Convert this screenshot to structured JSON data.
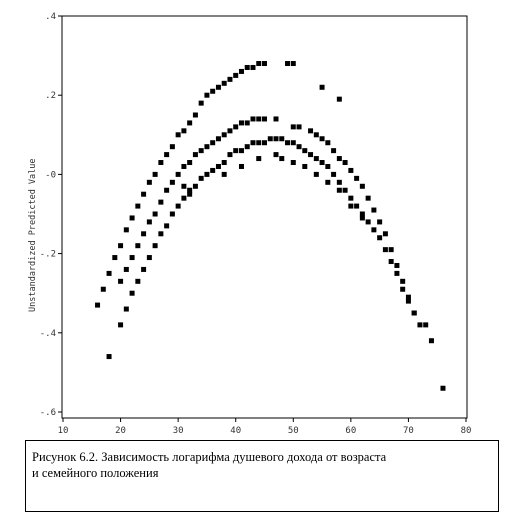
{
  "chart_data": {
    "type": "scatter",
    "title": "",
    "xlabel": "",
    "ylabel": "Unstandardized Predicted Value",
    "xlim": [
      10,
      80
    ],
    "ylim": [
      -0.6,
      0.4
    ],
    "x_ticks": [
      "10",
      "20",
      "30",
      "40",
      "50",
      "60",
      "70",
      "80"
    ],
    "y_ticks": [
      ".4",
      ".2",
      "-0",
      "-.2",
      "-.4",
      "-.6"
    ],
    "y_tick_values": [
      0.4,
      0.2,
      0.0,
      -0.2,
      -0.4,
      -0.6
    ],
    "grid": false,
    "marker_color": "#000000",
    "series": [
      {
        "values_x": [
          16,
          17,
          18,
          19,
          20,
          21,
          22,
          23,
          24,
          25,
          26,
          27,
          28,
          29,
          30,
          31,
          32,
          33,
          34,
          35,
          36,
          37,
          38,
          39,
          40,
          41,
          42,
          43,
          44,
          45,
          49,
          50,
          55,
          58
        ],
        "values_y": [
          -0.33,
          -0.29,
          -0.25,
          -0.21,
          -0.18,
          -0.14,
          -0.11,
          -0.08,
          -0.05,
          -0.02,
          0.0,
          0.03,
          0.05,
          0.07,
          0.1,
          0.11,
          0.13,
          0.15,
          0.18,
          0.2,
          0.21,
          0.22,
          0.23,
          0.24,
          0.25,
          0.26,
          0.27,
          0.27,
          0.28,
          0.28,
          0.28,
          0.28,
          0.22,
          0.19
        ]
      },
      {
        "values_x": [
          20,
          21,
          22,
          23,
          24,
          25,
          26,
          27,
          28,
          29,
          30,
          31,
          32,
          33,
          34,
          35,
          36,
          37,
          38,
          39,
          40,
          41,
          42,
          43,
          44,
          45,
          47,
          50,
          51,
          53,
          54,
          55,
          56,
          57,
          58,
          59,
          60,
          61,
          62,
          63,
          64,
          65,
          66,
          67,
          68,
          69,
          70,
          71,
          72
        ],
        "values_y": [
          -0.27,
          -0.24,
          -0.21,
          -0.18,
          -0.15,
          -0.12,
          -0.1,
          -0.07,
          -0.04,
          -0.02,
          0.0,
          0.02,
          0.03,
          0.05,
          0.06,
          0.07,
          0.08,
          0.09,
          0.1,
          0.11,
          0.12,
          0.13,
          0.13,
          0.14,
          0.14,
          0.14,
          0.14,
          0.12,
          0.12,
          0.11,
          0.1,
          0.09,
          0.08,
          0.06,
          0.04,
          0.03,
          0.01,
          -0.01,
          -0.03,
          -0.06,
          -0.09,
          -0.12,
          -0.15,
          -0.19,
          -0.23,
          -0.27,
          -0.31,
          -0.35,
          -0.38
        ]
      },
      {
        "values_x": [
          18,
          20,
          21,
          22,
          23,
          24,
          25,
          26,
          27,
          28,
          29,
          30,
          31,
          32,
          33,
          34,
          35,
          36,
          37,
          38,
          39,
          40,
          41,
          42,
          43,
          44,
          45,
          46,
          47,
          48,
          49,
          50,
          51,
          52,
          53,
          54,
          55,
          56,
          57,
          58,
          59,
          60,
          61,
          62,
          63,
          64,
          65,
          66,
          67,
          68,
          69,
          70,
          71,
          73,
          74,
          76
        ],
        "values_y": [
          -0.46,
          -0.38,
          -0.34,
          -0.3,
          -0.27,
          -0.24,
          -0.21,
          -0.18,
          -0.15,
          -0.13,
          -0.1,
          -0.08,
          -0.06,
          -0.04,
          -0.03,
          -0.01,
          0.0,
          0.01,
          0.02,
          0.03,
          0.05,
          0.06,
          0.06,
          0.07,
          0.08,
          0.08,
          0.08,
          0.09,
          0.09,
          0.09,
          0.08,
          0.08,
          0.07,
          0.06,
          0.05,
          0.04,
          0.03,
          0.02,
          0.0,
          -0.02,
          -0.04,
          -0.06,
          -0.08,
          -0.1,
          -0.12,
          -0.14,
          -0.16,
          -0.19,
          -0.22,
          -0.25,
          -0.29,
          -0.32,
          -0.35,
          -0.38,
          -0.42,
          -0.54
        ]
      },
      {
        "values_x": [
          31,
          32,
          38,
          41,
          44,
          47,
          48,
          50,
          52,
          54,
          56,
          58,
          60,
          62
        ],
        "values_y": [
          -0.03,
          -0.05,
          0.0,
          0.02,
          0.04,
          0.05,
          0.04,
          0.03,
          0.02,
          0.0,
          -0.02,
          -0.04,
          -0.08,
          -0.11
        ]
      }
    ]
  },
  "caption": {
    "line1": "Рисунок 6.2. Зависимость логарифма душевого дохода от возраста",
    "line2": "и семейного положения"
  }
}
